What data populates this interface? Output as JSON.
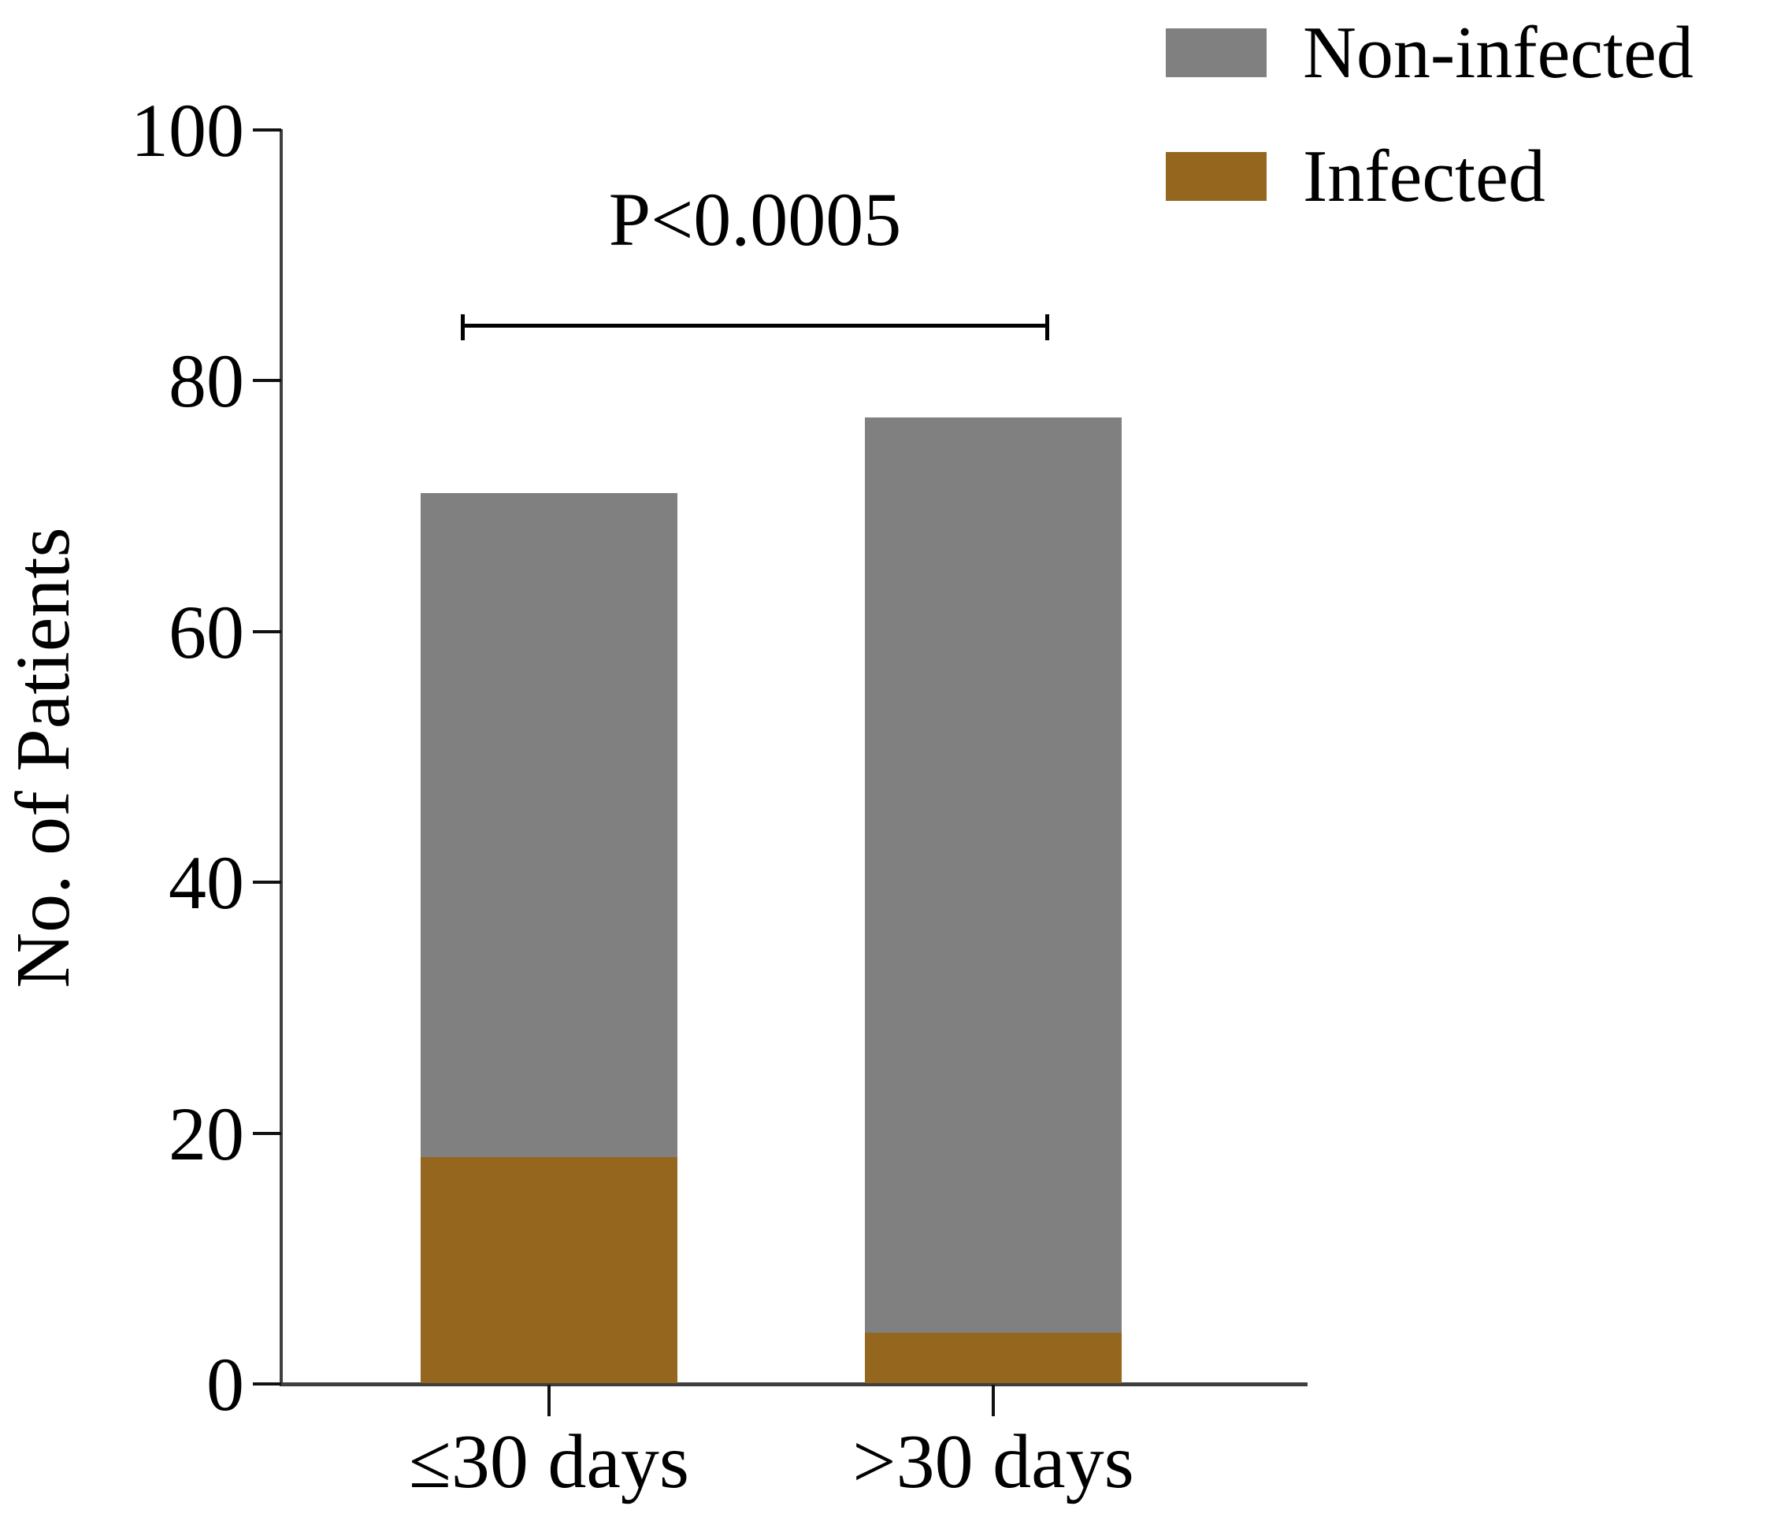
{
  "chart_data": {
    "type": "bar",
    "subtype": "stacked",
    "categories": [
      "≤30 days",
      ">30 days"
    ],
    "series": [
      {
        "name": "Infected",
        "color": "#95661E",
        "values": [
          18,
          4
        ]
      },
      {
        "name": "Non-infected",
        "color": "#808080",
        "values": [
          53,
          73
        ]
      }
    ],
    "ylabel": "No. of Patients",
    "xlabel": "",
    "ylim": [
      0,
      100
    ],
    "yticks": [
      0,
      20,
      40,
      60,
      80,
      100
    ],
    "grid": "off",
    "legend_position": "top-right",
    "legend": [
      {
        "label": "Non-infected",
        "color": "#808080"
      },
      {
        "label": "Infected",
        "color": "#95661E"
      }
    ],
    "annotation": {
      "text": "P<0.0005"
    },
    "axis_color": "#3f3f3f",
    "background": "#ffffff"
  }
}
